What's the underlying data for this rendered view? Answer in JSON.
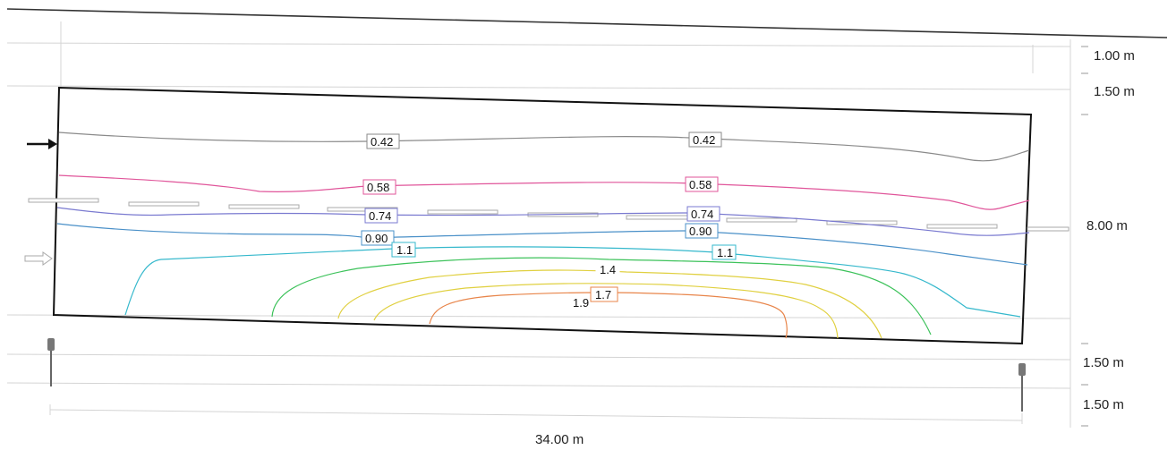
{
  "dimensions": {
    "row_widths": [
      "1.00 m",
      "1.50 m",
      "8.00 m",
      "1.50 m",
      "1.50 m"
    ],
    "length": "34.00 m"
  },
  "isolines": [
    {
      "value": "0.42",
      "color": "#8a8a8a"
    },
    {
      "value": "0.58",
      "color": "#e0559a"
    },
    {
      "value": "0.74",
      "color": "#7a7ad0"
    },
    {
      "value": "0.90",
      "color": "#4a90c8"
    },
    {
      "value": "1.1",
      "color": "#35b8cc"
    },
    {
      "value": "1.4",
      "color": "#3cc25a"
    },
    {
      "value": "1.7",
      "color": "#e8854a"
    },
    {
      "value": "1.9",
      "color": "#e0d040"
    }
  ],
  "icons": {
    "direction_arrow": "arrow-right-icon",
    "direction_arrow_outline": "outline-arrow-right-icon",
    "luminaire": "street-lamp-icon"
  }
}
